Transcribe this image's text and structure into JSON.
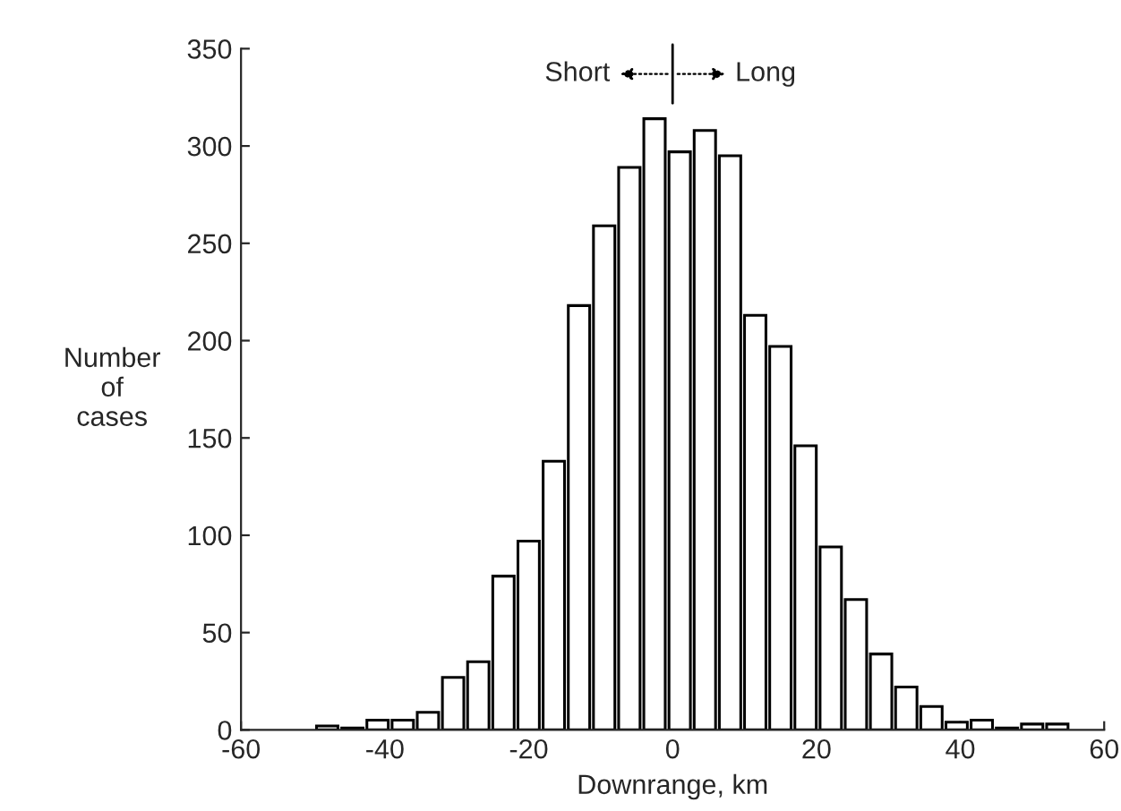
{
  "chart_data": {
    "type": "histogram",
    "xlabel": "Downrange, km",
    "ylabel": "Number\nof\ncases",
    "bins": [
      -49.5,
      -46,
      -42.5,
      -39,
      -35.5,
      -32,
      -28.5,
      -25,
      -21.5,
      -18,
      -14.5,
      -11,
      -7.5,
      -4,
      -0.5,
      3,
      6.5,
      10,
      13.5,
      17,
      20.5,
      24,
      27.5,
      31,
      34.5,
      38,
      41.5,
      45,
      48.5,
      52,
      55.5
    ],
    "values": [
      2,
      1,
      5,
      5,
      9,
      27,
      35,
      79,
      97,
      138,
      218,
      259,
      289,
      314,
      297,
      308,
      295,
      213,
      197,
      146,
      94,
      67,
      39,
      22,
      12,
      4,
      5,
      1,
      3,
      3
    ],
    "color": "#ffffff",
    "xlim": [
      -60,
      60
    ],
    "xticks": [
      -60,
      -40,
      -20,
      0,
      20,
      40,
      60
    ],
    "ylim": [
      0,
      350
    ],
    "yticks": [
      0,
      50,
      100,
      150,
      200,
      250,
      300,
      350
    ],
    "annotations": [
      "Short",
      "Long"
    ],
    "grid": false,
    "legend": false
  }
}
